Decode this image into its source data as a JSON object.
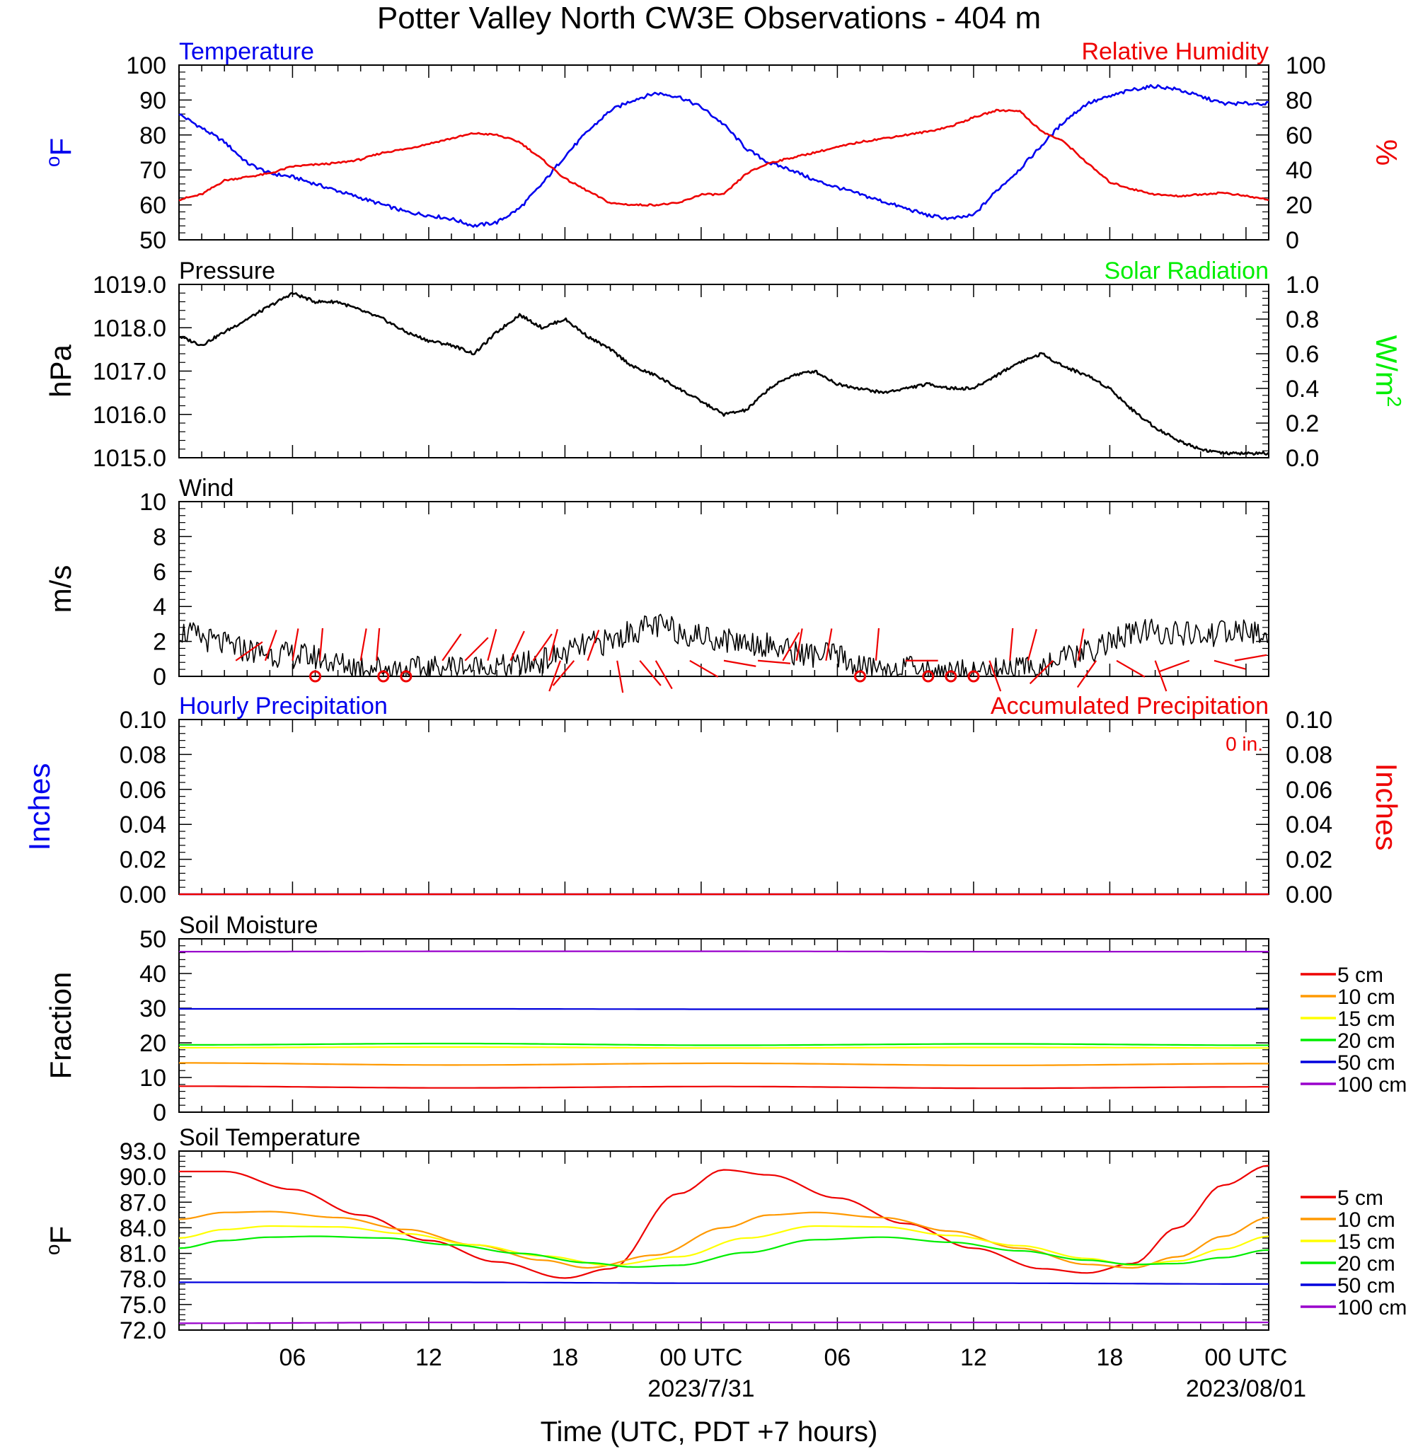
{
  "title": "Potter Valley North CW3E Observations - 404 m",
  "xlabel": "Time (UTC, PDT +7 hours)",
  "x_axis": {
    "range_hours": [
      0,
      48
    ],
    "ticks": [
      {
        "h": 5,
        "label": "06",
        "date": ""
      },
      {
        "h": 11,
        "label": "12",
        "date": ""
      },
      {
        "h": 17,
        "label": "18",
        "date": ""
      },
      {
        "h": 23,
        "label": "00 UTC",
        "date": "2023/7/31"
      },
      {
        "h": 29,
        "label": "06",
        "date": ""
      },
      {
        "h": 35,
        "label": "12",
        "date": ""
      },
      {
        "h": 41,
        "label": "18",
        "date": ""
      },
      {
        "h": 47,
        "label": "00 UTC",
        "date": "2023/08/01"
      }
    ]
  },
  "legend_labels": [
    "5 cm",
    "10 cm",
    "15 cm",
    "20 cm",
    "50 cm",
    "100 cm"
  ],
  "legend_colors": [
    "#ee0000",
    "#ff9900",
    "#ffff00",
    "#00ee00",
    "#0000dd",
    "#9900cc"
  ],
  "chart_data": [
    {
      "id": "temp-rh",
      "type": "line",
      "title_left": "Temperature",
      "title_right": "Relative Humidity",
      "ylabel_left": "oF",
      "ylabel_right": "%",
      "ylim_left": [
        50,
        100
      ],
      "ylim_right": [
        0,
        100
      ],
      "yticks_left": [
        "50",
        "60",
        "70",
        "80",
        "90",
        "100"
      ],
      "yticks_right": [
        "0",
        "20",
        "40",
        "60",
        "80",
        "100"
      ],
      "series": [
        {
          "name": "Temperature",
          "axis": "left",
          "color": "#0000ee",
          "x": [
            0,
            1,
            2,
            3,
            4,
            5,
            6,
            7,
            8,
            9,
            10,
            11,
            12,
            13,
            14,
            15,
            16,
            17,
            18,
            19,
            20,
            21,
            22,
            23,
            24,
            25,
            26,
            27,
            28,
            29,
            30,
            31,
            32,
            33,
            34,
            35,
            36,
            37,
            38,
            39,
            40,
            41,
            42,
            43,
            44,
            45,
            46,
            47,
            48
          ],
          "y": [
            86,
            82,
            78,
            72,
            69,
            68,
            66,
            64,
            62,
            60,
            58,
            57,
            56,
            54,
            55,
            59,
            66,
            74,
            81,
            87,
            90,
            92,
            91,
            88,
            83,
            76,
            72,
            70,
            67,
            65,
            63,
            61,
            59,
            57,
            56,
            57,
            64,
            70,
            77,
            84,
            89,
            91,
            93,
            94,
            93,
            91,
            89,
            89,
            89
          ]
        },
        {
          "name": "Relative Humidity",
          "axis": "right",
          "color": "#ee0000",
          "x": [
            0,
            1,
            2,
            3,
            4,
            5,
            6,
            7,
            8,
            9,
            10,
            11,
            12,
            13,
            14,
            15,
            16,
            17,
            18,
            19,
            20,
            21,
            22,
            23,
            24,
            25,
            26,
            27,
            28,
            29,
            30,
            31,
            32,
            33,
            34,
            35,
            36,
            37,
            38,
            39,
            40,
            41,
            42,
            43,
            44,
            45,
            46,
            47,
            48
          ],
          "y": [
            23,
            26,
            34,
            36,
            38,
            42,
            43,
            44,
            46,
            50,
            52,
            55,
            58,
            61,
            60,
            56,
            46,
            35,
            28,
            21,
            20,
            20,
            21,
            26,
            26,
            38,
            44,
            47,
            50,
            53,
            56,
            58,
            60,
            62,
            65,
            70,
            74,
            74,
            62,
            56,
            44,
            33,
            29,
            26,
            25,
            26,
            27,
            25,
            23
          ]
        }
      ]
    },
    {
      "id": "pressure",
      "type": "line",
      "title_left": "Pressure",
      "title_right": "Solar Radiation",
      "ylabel_left": "hPa",
      "ylabel_right": "W/m2",
      "ylim_left": [
        1015,
        1019
      ],
      "ylim_right": [
        0,
        1
      ],
      "yticks_left": [
        "1015.0",
        "1016.0",
        "1017.0",
        "1018.0",
        "1019.0"
      ],
      "yticks_right": [
        "0.0",
        "0.2",
        "0.4",
        "0.6",
        "0.8",
        "1.0"
      ],
      "series": [
        {
          "name": "Pressure",
          "axis": "left",
          "color": "#000000",
          "x": [
            0,
            1,
            2,
            3,
            4,
            5,
            6,
            7,
            8,
            9,
            10,
            11,
            12,
            13,
            14,
            15,
            16,
            17,
            18,
            19,
            20,
            21,
            22,
            23,
            24,
            25,
            26,
            27,
            28,
            29,
            30,
            31,
            32,
            33,
            34,
            35,
            36,
            37,
            38,
            39,
            40,
            41,
            42,
            43,
            44,
            45,
            46,
            47,
            48
          ],
          "y": [
            1017.8,
            1017.6,
            1017.9,
            1018.2,
            1018.5,
            1018.8,
            1018.6,
            1018.6,
            1018.4,
            1018.2,
            1017.9,
            1017.7,
            1017.6,
            1017.4,
            1017.9,
            1018.3,
            1018.0,
            1018.2,
            1017.8,
            1017.5,
            1017.1,
            1016.9,
            1016.6,
            1016.3,
            1016.0,
            1016.1,
            1016.6,
            1016.9,
            1017.0,
            1016.7,
            1016.6,
            1016.5,
            1016.6,
            1016.7,
            1016.6,
            1016.6,
            1016.9,
            1017.2,
            1017.4,
            1017.1,
            1016.9,
            1016.6,
            1016.1,
            1015.7,
            1015.4,
            1015.2,
            1015.1,
            1015.1,
            1015.1
          ]
        }
      ]
    },
    {
      "id": "wind",
      "type": "line",
      "title_left": "Wind",
      "ylabel_left": "m/s",
      "ylim_left": [
        0,
        10
      ],
      "yticks_left": [
        "0",
        "2",
        "4",
        "6",
        "8",
        "10"
      ],
      "series": [
        {
          "name": "Wind",
          "axis": "left",
          "color": "#000000",
          "x": [
            0,
            1,
            2,
            3,
            4,
            5,
            6,
            7,
            8,
            9,
            10,
            11,
            12,
            13,
            14,
            15,
            16,
            17,
            18,
            19,
            20,
            21,
            22,
            23,
            24,
            25,
            26,
            27,
            28,
            29,
            30,
            31,
            32,
            33,
            34,
            35,
            36,
            37,
            38,
            39,
            40,
            41,
            42,
            43,
            44,
            45,
            46,
            47,
            48
          ],
          "y": [
            2.6,
            2.2,
            1.8,
            1.5,
            1.3,
            1.2,
            1.1,
            0.7,
            0.6,
            0.5,
            0.4,
            0.4,
            0.6,
            0.5,
            0.5,
            0.6,
            0.9,
            1.3,
            1.8,
            2.0,
            2.6,
            2.9,
            2.6,
            2.3,
            2.1,
            2.0,
            1.8,
            1.4,
            1.2,
            1.2,
            0.5,
            0.5,
            0.4,
            0.4,
            0.3,
            0.3,
            0.3,
            0.4,
            0.6,
            1.0,
            1.4,
            2.0,
            2.4,
            2.6,
            2.4,
            2.3,
            2.5,
            2.6,
            2.2
          ]
        }
      ]
    },
    {
      "id": "precip",
      "type": "line",
      "title_left": "Hourly Precipitation",
      "title_right": "Accumulated Precipitation",
      "annotation": "0 in.",
      "ylabel_left": "Inches",
      "ylabel_right": "Inches",
      "ylim_left": [
        0,
        0.1
      ],
      "ylim_right": [
        0,
        0.1
      ],
      "yticks_left": [
        "0.00",
        "0.02",
        "0.04",
        "0.06",
        "0.08",
        "0.10"
      ],
      "yticks_right": [
        "0.00",
        "0.02",
        "0.04",
        "0.06",
        "0.08",
        "0.10"
      ],
      "series": [
        {
          "name": "Hourly Precipitation",
          "axis": "left",
          "color": "#0000ee",
          "x": [
            0,
            48
          ],
          "y": [
            0,
            0
          ]
        },
        {
          "name": "Accumulated Precipitation",
          "axis": "right",
          "color": "#ee0000",
          "x": [
            0,
            48
          ],
          "y": [
            0,
            0
          ]
        }
      ]
    },
    {
      "id": "soil-moisture",
      "type": "line",
      "title_left": "Soil Moisture",
      "ylabel_left": "Fraction",
      "ylim_left": [
        0,
        50
      ],
      "yticks_left": [
        "0",
        "10",
        "20",
        "30",
        "40",
        "50"
      ],
      "series": [
        {
          "name": "5 cm",
          "color": "#ee0000",
          "x": [
            0,
            12,
            24,
            36,
            48
          ],
          "y": [
            7.5,
            7.0,
            7.4,
            6.9,
            7.3
          ]
        },
        {
          "name": "10 cm",
          "color": "#ff9900",
          "x": [
            0,
            12,
            24,
            36,
            48
          ],
          "y": [
            14.2,
            13.6,
            14.1,
            13.5,
            14.0
          ]
        },
        {
          "name": "15 cm",
          "color": "#ffff00",
          "x": [
            0,
            12,
            24,
            36,
            48
          ],
          "y": [
            18.6,
            18.8,
            18.5,
            18.7,
            18.5
          ]
        },
        {
          "name": "20 cm",
          "color": "#00ee00",
          "x": [
            0,
            12,
            24,
            36,
            48
          ],
          "y": [
            19.4,
            19.8,
            19.3,
            19.7,
            19.3
          ]
        },
        {
          "name": "50 cm",
          "color": "#0000dd",
          "x": [
            0,
            12,
            24,
            36,
            48
          ],
          "y": [
            29.8,
            29.8,
            29.7,
            29.7,
            29.7
          ]
        },
        {
          "name": "100 cm",
          "color": "#9900cc",
          "x": [
            0,
            12,
            24,
            36,
            48
          ],
          "y": [
            46.3,
            46.4,
            46.4,
            46.3,
            46.3
          ]
        }
      ]
    },
    {
      "id": "soil-temp",
      "type": "line",
      "title_left": "Soil Temperature",
      "ylabel_left": "oF",
      "ylim_left": [
        72,
        93
      ],
      "yticks_left": [
        "72.0",
        "75.0",
        "78.0",
        "81.0",
        "84.0",
        "87.0",
        "90.0",
        "93.0"
      ],
      "series": [
        {
          "name": "5 cm",
          "color": "#ee0000",
          "x": [
            0,
            2,
            5,
            8,
            11,
            14,
            17,
            19,
            22,
            24,
            26,
            29,
            32,
            35,
            38,
            40,
            42,
            44,
            46,
            48
          ],
          "y": [
            90.6,
            90.6,
            88.5,
            85.5,
            82.5,
            80.0,
            78.1,
            79.2,
            88.0,
            90.8,
            90.2,
            87.5,
            84.5,
            81.6,
            79.2,
            78.7,
            79.8,
            84.0,
            89.0,
            91.3
          ]
        },
        {
          "name": "10 cm",
          "color": "#ff9900",
          "x": [
            0,
            2,
            4,
            7,
            10,
            13,
            16,
            18,
            21,
            24,
            26,
            28,
            31,
            34,
            37,
            40,
            42,
            44,
            46,
            48
          ],
          "y": [
            85.0,
            85.8,
            85.9,
            85.2,
            83.8,
            82.0,
            80.2,
            79.3,
            80.8,
            84.0,
            85.5,
            85.8,
            85.2,
            83.6,
            81.6,
            79.7,
            79.3,
            80.6,
            83.0,
            85.2
          ]
        },
        {
          "name": "15 cm",
          "color": "#ffff00",
          "x": [
            0,
            2,
            4,
            7,
            10,
            13,
            16,
            19,
            22,
            25,
            28,
            31,
            34,
            37,
            40,
            42,
            44,
            46,
            48
          ],
          "y": [
            82.8,
            83.8,
            84.2,
            84.1,
            83.3,
            82.0,
            80.7,
            79.6,
            80.6,
            82.8,
            84.2,
            84.1,
            83.1,
            81.9,
            80.4,
            79.6,
            80.1,
            81.5,
            83.0
          ]
        },
        {
          "name": "20 cm",
          "color": "#00ee00",
          "x": [
            0,
            2,
            4,
            6,
            9,
            12,
            15,
            18,
            20,
            22,
            25,
            28,
            31,
            34,
            37,
            40,
            42,
            44,
            46,
            48
          ],
          "y": [
            81.6,
            82.5,
            82.9,
            83.0,
            82.8,
            82.0,
            81.0,
            79.9,
            79.4,
            79.6,
            81.1,
            82.6,
            82.9,
            82.3,
            81.3,
            80.2,
            79.7,
            79.8,
            80.5,
            81.4
          ]
        },
        {
          "name": "50 cm",
          "color": "#0000dd",
          "x": [
            0,
            12,
            24,
            36,
            48
          ],
          "y": [
            77.6,
            77.6,
            77.5,
            77.5,
            77.4
          ]
        },
        {
          "name": "100 cm",
          "color": "#9900cc",
          "x": [
            0,
            12,
            24,
            36,
            48
          ],
          "y": [
            72.8,
            72.9,
            72.9,
            72.9,
            72.9
          ]
        }
      ]
    }
  ],
  "wind_barbs": [
    {
      "h": 2.5,
      "deg": 55
    },
    {
      "h": 3.8,
      "deg": 20
    },
    {
      "h": 5.0,
      "deg": 10
    },
    {
      "h": 6.2,
      "deg": 5
    },
    {
      "h": 8.0,
      "deg": 10
    },
    {
      "h": 8.7,
      "deg": 5
    },
    {
      "h": 11.6,
      "deg": 35
    },
    {
      "h": 12.6,
      "deg": 45
    },
    {
      "h": 13.6,
      "deg": 15
    },
    {
      "h": 14.6,
      "deg": 25
    },
    {
      "h": 15.6,
      "deg": 35
    },
    {
      "h": 16.3,
      "deg": 15
    },
    {
      "h": 16.8,
      "deg": 200
    },
    {
      "h": 17.4,
      "deg": 220
    },
    {
      "h": 18.0,
      "deg": 20
    },
    {
      "h": 19.3,
      "deg": 170
    },
    {
      "h": 20.3,
      "deg": 140
    },
    {
      "h": 21.0,
      "deg": 150
    },
    {
      "h": 22.5,
      "deg": 120
    },
    {
      "h": 24.0,
      "deg": 100
    },
    {
      "h": 25.5,
      "deg": 95
    },
    {
      "h": 26.6,
      "deg": 30
    },
    {
      "h": 27.2,
      "deg": 10
    },
    {
      "h": 28.5,
      "deg": 10
    },
    {
      "h": 30.7,
      "deg": 5
    },
    {
      "h": 32.0,
      "deg": 90
    },
    {
      "h": 35.7,
      "deg": 160
    },
    {
      "h": 36.6,
      "deg": 5
    },
    {
      "h": 37.4,
      "deg": 15
    },
    {
      "h": 38.5,
      "deg": 225
    },
    {
      "h": 39.6,
      "deg": 10
    },
    {
      "h": 40.4,
      "deg": 215
    },
    {
      "h": 41.3,
      "deg": 120
    },
    {
      "h": 43.0,
      "deg": 160
    },
    {
      "h": 44.5,
      "deg": 250
    },
    {
      "h": 45.6,
      "deg": 105
    },
    {
      "h": 46.5,
      "deg": 80
    }
  ],
  "calm_markers_hours": [
    6,
    9,
    10,
    30,
    33,
    34,
    35
  ]
}
